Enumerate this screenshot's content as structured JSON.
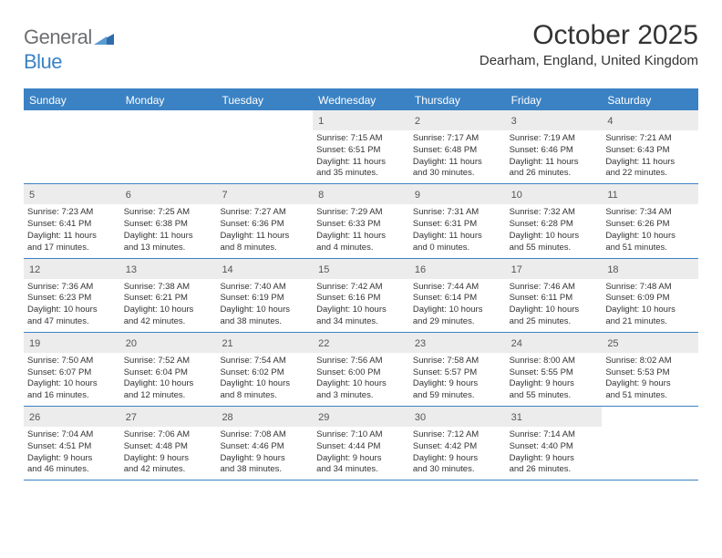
{
  "header": {
    "logo_gray": "General",
    "logo_blue": "Blue",
    "title": "October 2025",
    "location": "Dearham, England, United Kingdom"
  },
  "colors": {
    "accent": "#3b82c4",
    "daynum_bg": "#ececec",
    "text": "#333333",
    "logo_gray": "#6d6e71"
  },
  "daynames": [
    "Sunday",
    "Monday",
    "Tuesday",
    "Wednesday",
    "Thursday",
    "Friday",
    "Saturday"
  ],
  "weeks": [
    [
      {
        "n": "",
        "lines": [
          "",
          "",
          "",
          ""
        ]
      },
      {
        "n": "",
        "lines": [
          "",
          "",
          "",
          ""
        ]
      },
      {
        "n": "",
        "lines": [
          "",
          "",
          "",
          ""
        ]
      },
      {
        "n": "1",
        "lines": [
          "Sunrise: 7:15 AM",
          "Sunset: 6:51 PM",
          "Daylight: 11 hours",
          "and 35 minutes."
        ]
      },
      {
        "n": "2",
        "lines": [
          "Sunrise: 7:17 AM",
          "Sunset: 6:48 PM",
          "Daylight: 11 hours",
          "and 30 minutes."
        ]
      },
      {
        "n": "3",
        "lines": [
          "Sunrise: 7:19 AM",
          "Sunset: 6:46 PM",
          "Daylight: 11 hours",
          "and 26 minutes."
        ]
      },
      {
        "n": "4",
        "lines": [
          "Sunrise: 7:21 AM",
          "Sunset: 6:43 PM",
          "Daylight: 11 hours",
          "and 22 minutes."
        ]
      }
    ],
    [
      {
        "n": "5",
        "lines": [
          "Sunrise: 7:23 AM",
          "Sunset: 6:41 PM",
          "Daylight: 11 hours",
          "and 17 minutes."
        ]
      },
      {
        "n": "6",
        "lines": [
          "Sunrise: 7:25 AM",
          "Sunset: 6:38 PM",
          "Daylight: 11 hours",
          "and 13 minutes."
        ]
      },
      {
        "n": "7",
        "lines": [
          "Sunrise: 7:27 AM",
          "Sunset: 6:36 PM",
          "Daylight: 11 hours",
          "and 8 minutes."
        ]
      },
      {
        "n": "8",
        "lines": [
          "Sunrise: 7:29 AM",
          "Sunset: 6:33 PM",
          "Daylight: 11 hours",
          "and 4 minutes."
        ]
      },
      {
        "n": "9",
        "lines": [
          "Sunrise: 7:31 AM",
          "Sunset: 6:31 PM",
          "Daylight: 11 hours",
          "and 0 minutes."
        ]
      },
      {
        "n": "10",
        "lines": [
          "Sunrise: 7:32 AM",
          "Sunset: 6:28 PM",
          "Daylight: 10 hours",
          "and 55 minutes."
        ]
      },
      {
        "n": "11",
        "lines": [
          "Sunrise: 7:34 AM",
          "Sunset: 6:26 PM",
          "Daylight: 10 hours",
          "and 51 minutes."
        ]
      }
    ],
    [
      {
        "n": "12",
        "lines": [
          "Sunrise: 7:36 AM",
          "Sunset: 6:23 PM",
          "Daylight: 10 hours",
          "and 47 minutes."
        ]
      },
      {
        "n": "13",
        "lines": [
          "Sunrise: 7:38 AM",
          "Sunset: 6:21 PM",
          "Daylight: 10 hours",
          "and 42 minutes."
        ]
      },
      {
        "n": "14",
        "lines": [
          "Sunrise: 7:40 AM",
          "Sunset: 6:19 PM",
          "Daylight: 10 hours",
          "and 38 minutes."
        ]
      },
      {
        "n": "15",
        "lines": [
          "Sunrise: 7:42 AM",
          "Sunset: 6:16 PM",
          "Daylight: 10 hours",
          "and 34 minutes."
        ]
      },
      {
        "n": "16",
        "lines": [
          "Sunrise: 7:44 AM",
          "Sunset: 6:14 PM",
          "Daylight: 10 hours",
          "and 29 minutes."
        ]
      },
      {
        "n": "17",
        "lines": [
          "Sunrise: 7:46 AM",
          "Sunset: 6:11 PM",
          "Daylight: 10 hours",
          "and 25 minutes."
        ]
      },
      {
        "n": "18",
        "lines": [
          "Sunrise: 7:48 AM",
          "Sunset: 6:09 PM",
          "Daylight: 10 hours",
          "and 21 minutes."
        ]
      }
    ],
    [
      {
        "n": "19",
        "lines": [
          "Sunrise: 7:50 AM",
          "Sunset: 6:07 PM",
          "Daylight: 10 hours",
          "and 16 minutes."
        ]
      },
      {
        "n": "20",
        "lines": [
          "Sunrise: 7:52 AM",
          "Sunset: 6:04 PM",
          "Daylight: 10 hours",
          "and 12 minutes."
        ]
      },
      {
        "n": "21",
        "lines": [
          "Sunrise: 7:54 AM",
          "Sunset: 6:02 PM",
          "Daylight: 10 hours",
          "and 8 minutes."
        ]
      },
      {
        "n": "22",
        "lines": [
          "Sunrise: 7:56 AM",
          "Sunset: 6:00 PM",
          "Daylight: 10 hours",
          "and 3 minutes."
        ]
      },
      {
        "n": "23",
        "lines": [
          "Sunrise: 7:58 AM",
          "Sunset: 5:57 PM",
          "Daylight: 9 hours",
          "and 59 minutes."
        ]
      },
      {
        "n": "24",
        "lines": [
          "Sunrise: 8:00 AM",
          "Sunset: 5:55 PM",
          "Daylight: 9 hours",
          "and 55 minutes."
        ]
      },
      {
        "n": "25",
        "lines": [
          "Sunrise: 8:02 AM",
          "Sunset: 5:53 PM",
          "Daylight: 9 hours",
          "and 51 minutes."
        ]
      }
    ],
    [
      {
        "n": "26",
        "lines": [
          "Sunrise: 7:04 AM",
          "Sunset: 4:51 PM",
          "Daylight: 9 hours",
          "and 46 minutes."
        ]
      },
      {
        "n": "27",
        "lines": [
          "Sunrise: 7:06 AM",
          "Sunset: 4:48 PM",
          "Daylight: 9 hours",
          "and 42 minutes."
        ]
      },
      {
        "n": "28",
        "lines": [
          "Sunrise: 7:08 AM",
          "Sunset: 4:46 PM",
          "Daylight: 9 hours",
          "and 38 minutes."
        ]
      },
      {
        "n": "29",
        "lines": [
          "Sunrise: 7:10 AM",
          "Sunset: 4:44 PM",
          "Daylight: 9 hours",
          "and 34 minutes."
        ]
      },
      {
        "n": "30",
        "lines": [
          "Sunrise: 7:12 AM",
          "Sunset: 4:42 PM",
          "Daylight: 9 hours",
          "and 30 minutes."
        ]
      },
      {
        "n": "31",
        "lines": [
          "Sunrise: 7:14 AM",
          "Sunset: 4:40 PM",
          "Daylight: 9 hours",
          "and 26 minutes."
        ]
      },
      {
        "n": "",
        "lines": [
          "",
          "",
          "",
          ""
        ]
      }
    ]
  ]
}
